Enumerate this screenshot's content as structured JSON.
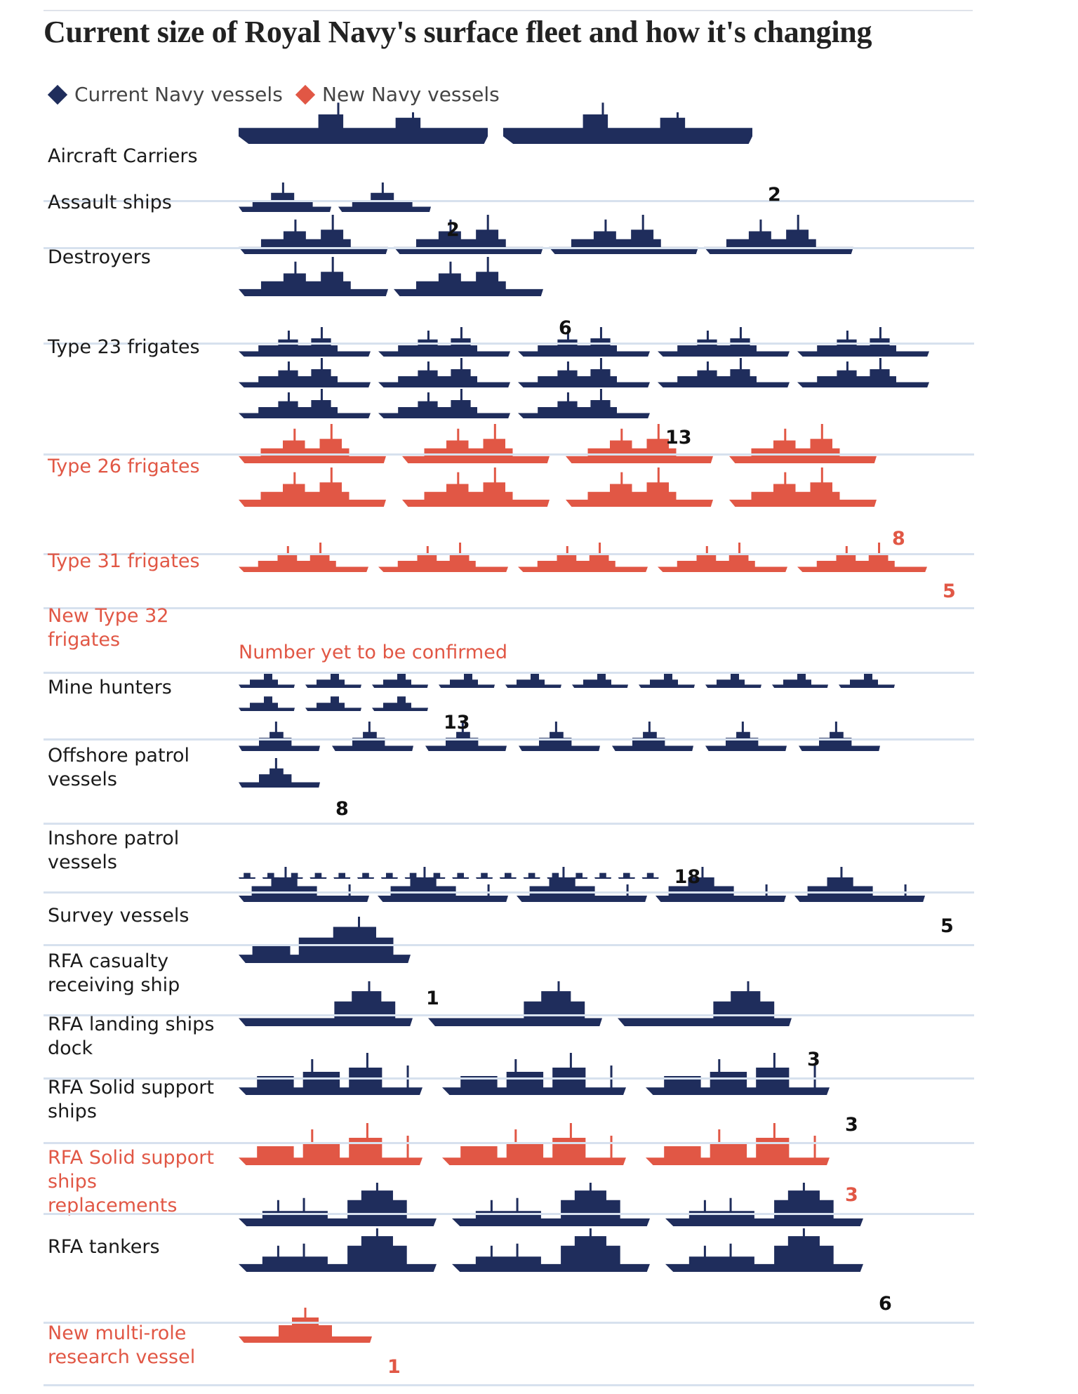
{
  "title": "Current size of Royal Navy's surface fleet and how it's changing",
  "legend": {
    "current": {
      "label": "Current Navy vessels",
      "color": "#1f2d5c"
    },
    "new": {
      "label": "New Navy vessels",
      "color": "#e15745"
    }
  },
  "chart_data": {
    "type": "pictogram",
    "title": "Current size of Royal Navy's surface fleet and how it's changing",
    "series": [
      {
        "name": "Current Navy vessels",
        "color": "#1f2d5c"
      },
      {
        "name": "New Navy vessels",
        "color": "#e15745"
      }
    ],
    "categories": [
      {
        "label": "Aircraft Carriers",
        "count": 2,
        "count_label": "2",
        "status": "current",
        "icon": "carrier-icon"
      },
      {
        "label": "Assault ships",
        "count": 2,
        "count_label": "2",
        "status": "current",
        "icon": "assault-ship-icon"
      },
      {
        "label": "Destroyers",
        "count": 6,
        "count_label": "6",
        "status": "current",
        "icon": "destroyer-icon"
      },
      {
        "label": "Type 23 frigates",
        "count": 13,
        "count_label": "13",
        "status": "current",
        "icon": "frigate-icon"
      },
      {
        "label": "Type 26 frigates",
        "count": 8,
        "count_label": "8",
        "status": "new",
        "icon": "frigate-26-icon"
      },
      {
        "label": "Type 31 frigates",
        "count": 5,
        "count_label": "5",
        "status": "new",
        "icon": "frigate-31-icon"
      },
      {
        "label": "New Type 32 frigates",
        "count": null,
        "count_label": "",
        "note": "Number yet to be confirmed",
        "status": "new",
        "icon": ""
      },
      {
        "label": "Mine hunters",
        "count": 13,
        "count_label": "13",
        "status": "current",
        "icon": "mine-hunter-icon"
      },
      {
        "label": "Offshore patrol vessels",
        "count": 8,
        "count_label": "8",
        "status": "current",
        "icon": "patrol-vessel-icon"
      },
      {
        "label": "Inshore patrol vessels",
        "count": 18,
        "count_label": "18",
        "status": "current",
        "icon": "patrol-boat-icon"
      },
      {
        "label": "Survey vessels",
        "count": 5,
        "count_label": "5",
        "status": "current",
        "icon": "survey-vessel-icon"
      },
      {
        "label": "RFA casualty receiving ship",
        "count": 1,
        "count_label": "1",
        "status": "current",
        "icon": "casualty-ship-icon"
      },
      {
        "label": "RFA landing ships dock",
        "count": 3,
        "count_label": "3",
        "status": "current",
        "icon": "landing-ship-icon"
      },
      {
        "label": "RFA Solid support ships",
        "count": 3,
        "count_label": "3",
        "status": "current",
        "icon": "support-ship-icon"
      },
      {
        "label": "RFA Solid support ships replacements",
        "count": 3,
        "count_label": "3",
        "status": "new",
        "icon": "support-ship-icon"
      },
      {
        "label": "RFA tankers",
        "count": 6,
        "count_label": "6",
        "status": "current",
        "icon": "tanker-icon"
      },
      {
        "label": "New multi-role research vessel",
        "count": 1,
        "count_label": "1",
        "status": "new",
        "icon": "research-vessel-icon"
      }
    ]
  }
}
